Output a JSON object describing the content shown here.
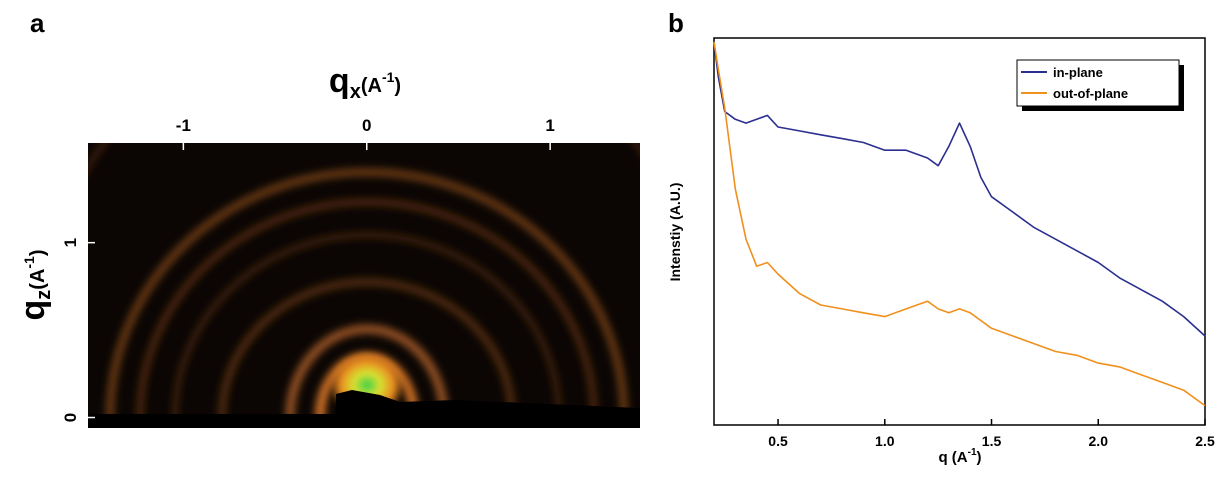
{
  "chart_data": [
    {
      "type": "image",
      "panel": "a",
      "xlabel": {
        "symbol": "q",
        "sub": "x",
        "unit_open": "(A",
        "sup": "-1",
        "unit_close": ")"
      },
      "ylabel": {
        "symbol": "q",
        "sub": "z",
        "unit_open": "(A",
        "sup": "-1",
        "unit_close": ")"
      },
      "xlim": [
        -1.52,
        1.49
      ],
      "xticks": [
        -1,
        0,
        1
      ],
      "ylim": [
        -0.06,
        1.57
      ],
      "yticks": [
        0,
        1
      ]
    },
    {
      "type": "line",
      "panel": "b",
      "xlabel": {
        "text": "q (A",
        "sup": "-1",
        "close": ")"
      },
      "ylabel": "Intenstiy (A.U.)",
      "xlim": [
        0.2,
        2.5
      ],
      "xticks": [
        0.5,
        {
          "value": 1,
          "label": "1.0"
        },
        1.5,
        {
          "value": 2,
          "label": "2.0"
        },
        2.5
      ],
      "ylim": [
        0,
        1
      ],
      "legend": "upper right",
      "x": [
        0.2,
        0.22,
        0.25,
        0.3,
        0.35,
        0.4,
        0.45,
        0.5,
        0.6,
        0.7,
        0.8,
        0.9,
        1.0,
        1.1,
        1.2,
        1.25,
        1.3,
        1.35,
        1.4,
        1.45,
        1.5,
        1.6,
        1.7,
        1.8,
        1.9,
        2.0,
        2.1,
        2.2,
        2.3,
        2.4,
        2.5
      ],
      "series": [
        {
          "name": "in-plane",
          "color": "#2b2f8f",
          "values": [
            0.99,
            0.9,
            0.81,
            0.79,
            0.78,
            0.79,
            0.8,
            0.77,
            0.76,
            0.75,
            0.74,
            0.73,
            0.71,
            0.71,
            0.69,
            0.67,
            0.72,
            0.78,
            0.72,
            0.64,
            0.59,
            0.55,
            0.51,
            0.48,
            0.45,
            0.42,
            0.38,
            0.35,
            0.32,
            0.28,
            0.23
          ]
        },
        {
          "name": "out-of-plane",
          "color": "#f0901e",
          "values": [
            0.99,
            0.92,
            0.82,
            0.61,
            0.48,
            0.41,
            0.42,
            0.39,
            0.34,
            0.31,
            0.3,
            0.29,
            0.28,
            0.3,
            0.32,
            0.3,
            0.29,
            0.3,
            0.29,
            0.27,
            0.25,
            0.23,
            0.21,
            0.19,
            0.18,
            0.16,
            0.15,
            0.13,
            0.11,
            0.09,
            0.05
          ]
        }
      ]
    }
  ]
}
